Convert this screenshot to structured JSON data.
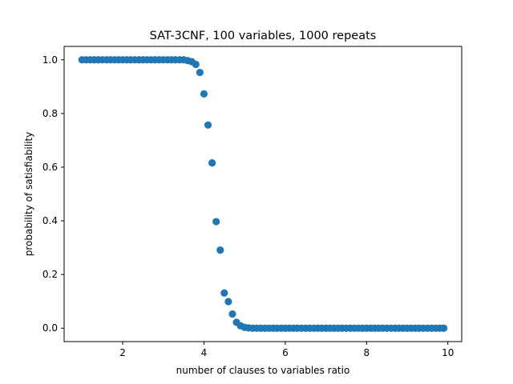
{
  "chart_data": {
    "type": "scatter",
    "title": "SAT-3CNF, 100 variables, 1000 repeats",
    "xlabel": "number of clauses to variables ratio",
    "ylabel": "probability of satisfiability",
    "xlim": [
      0.56,
      10.34
    ],
    "ylim": [
      -0.05,
      1.05
    ],
    "xticks": [
      2,
      4,
      6,
      8,
      10
    ],
    "yticks": [
      0.0,
      0.2,
      0.4,
      0.6,
      0.8,
      1.0
    ],
    "xtick_labels": [
      "2",
      "4",
      "6",
      "8",
      "10"
    ],
    "ytick_labels": [
      "0.0",
      "0.2",
      "0.4",
      "0.6",
      "0.8",
      "1.0"
    ],
    "grid": false,
    "marker_color": "#1f77b4",
    "series": [
      {
        "x": [
          1.0,
          1.1,
          1.2,
          1.3,
          1.4,
          1.5,
          1.6,
          1.7,
          1.8,
          1.9,
          2.0,
          2.1,
          2.2,
          2.3,
          2.4,
          2.5,
          2.6,
          2.7,
          2.8,
          2.9,
          3.0,
          3.1,
          3.2,
          3.3,
          3.4,
          3.5,
          3.6,
          3.7,
          3.8,
          3.9,
          4.0,
          4.1,
          4.2,
          4.3,
          4.4,
          4.5,
          4.6,
          4.7,
          4.8,
          4.9,
          5.0,
          5.1,
          5.2,
          5.3,
          5.4,
          5.5,
          5.6,
          5.7,
          5.8,
          5.9,
          6.0,
          6.1,
          6.2,
          6.3,
          6.4,
          6.5,
          6.6,
          6.7,
          6.8,
          6.9,
          7.0,
          7.1,
          7.2,
          7.3,
          7.4,
          7.5,
          7.6,
          7.7,
          7.8,
          7.9,
          8.0,
          8.1,
          8.2,
          8.3,
          8.4,
          8.5,
          8.6,
          8.7,
          8.8,
          8.9,
          9.0,
          9.1,
          9.2,
          9.3,
          9.4,
          9.5,
          9.6,
          9.7,
          9.8,
          9.9
        ],
        "y": [
          1.0,
          1.0,
          1.0,
          1.0,
          1.0,
          1.0,
          1.0,
          1.0,
          1.0,
          1.0,
          1.0,
          1.0,
          1.0,
          1.0,
          1.0,
          1.0,
          1.0,
          1.0,
          1.0,
          1.0,
          1.0,
          1.0,
          1.0,
          1.0,
          1.0,
          1.0,
          0.997,
          0.993,
          0.983,
          0.953,
          0.873,
          0.757,
          0.616,
          0.397,
          0.291,
          0.131,
          0.099,
          0.053,
          0.022,
          0.009,
          0.003,
          0.001,
          0.0,
          0.0,
          0.0,
          0.0,
          0.0,
          0.0,
          0.0,
          0.0,
          0.0,
          0.0,
          0.0,
          0.0,
          0.0,
          0.0,
          0.0,
          0.0,
          0.0,
          0.0,
          0.0,
          0.0,
          0.0,
          0.0,
          0.0,
          0.0,
          0.0,
          0.0,
          0.0,
          0.0,
          0.0,
          0.0,
          0.0,
          0.0,
          0.0,
          0.0,
          0.0,
          0.0,
          0.0,
          0.0,
          0.0,
          0.0,
          0.0,
          0.0,
          0.0,
          0.0,
          0.0,
          0.0,
          0.0,
          0.0
        ]
      }
    ]
  }
}
